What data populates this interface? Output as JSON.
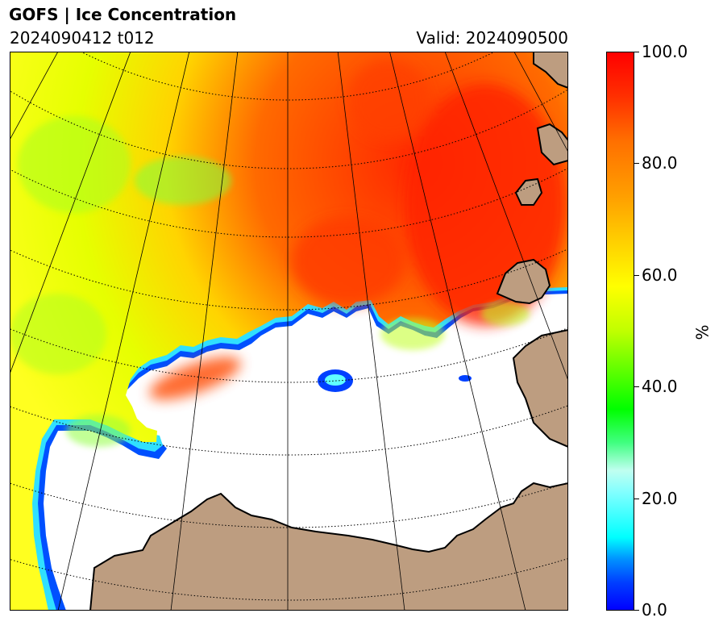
{
  "header": {
    "title": "GOFS  |  Ice Concentration",
    "run": "2024090412 t012",
    "valid": "Valid: 2024090500"
  },
  "colorbar": {
    "unit": "%",
    "ticks": [
      "100.0",
      "80.0",
      "60.0",
      "40.0",
      "20.0",
      "0.0"
    ],
    "range": [
      0,
      100
    ],
    "colors": [
      "#0000ff",
      "#00ffff",
      "#00ff00",
      "#ffff00",
      "#ff7000",
      "#ff0000"
    ]
  },
  "map": {
    "land_color": "#bd9d80",
    "ocean_color": "#ffffff",
    "graticule": "dotted"
  }
}
